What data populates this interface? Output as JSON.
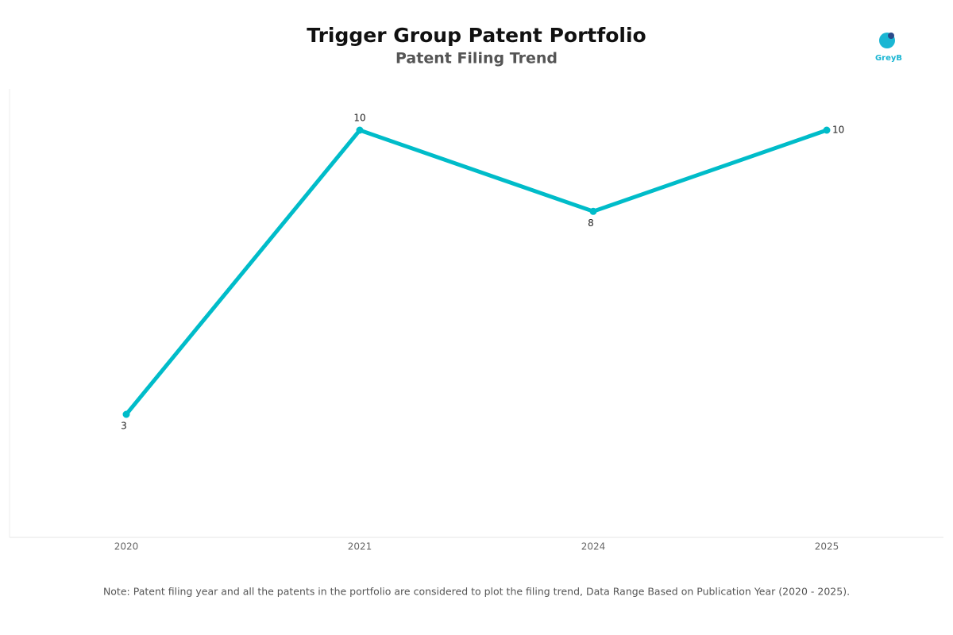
{
  "chart_data": {
    "type": "line",
    "title": "Trigger Group Patent Portfolio",
    "subtitle": "Patent Filing Trend",
    "categories": [
      "2020",
      "2021",
      "2024",
      "2025"
    ],
    "values": [
      3,
      10,
      8,
      10
    ],
    "color": "#00bcc9",
    "note": "Note: Patent filing year and all the patents in the portfolio are considered to plot the filing trend, Data Range Based on Publication Year (2020 - 2025).",
    "logo": "GreyB"
  }
}
